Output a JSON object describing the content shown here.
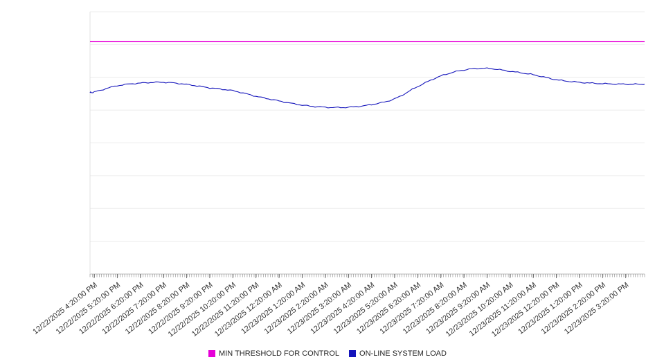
{
  "chart_data": {
    "type": "line",
    "title": "",
    "xlabel": "",
    "ylabel": "",
    "ylim": [
      0,
      100
    ],
    "grid": "horizontal",
    "legend_position": "bottom",
    "x_labels": [
      "12/22/2025 4:20:00 PM",
      "12/22/2025 5:20:00 PM",
      "12/22/2025 6:20:00 PM",
      "12/22/2025 7:20:00 PM",
      "12/22/2025 8:20:00 PM",
      "12/22/2025 9:20:00 PM",
      "12/22/2025 10:20:00 PM",
      "12/22/2025 11:20:00 PM",
      "12/23/2025 12:20:00 AM",
      "12/23/2025 1:20:00 AM",
      "12/23/2025 2:20:00 AM",
      "12/23/2025 3:20:00 AM",
      "12/23/2025 4:20:00 AM",
      "12/23/2025 5:20:00 AM",
      "12/23/2025 6:20:00 AM",
      "12/23/2025 7:20:00 AM",
      "12/23/2025 8:20:00 AM",
      "12/23/2025 9:20:00 AM",
      "12/23/2025 10:20:00 AM",
      "12/23/2025 11:20:00 AM",
      "12/23/2025 12:20:00 PM",
      "12/23/2025 1:20:00 PM",
      "12/23/2025 2:20:00 PM",
      "12/23/2025 3:20:00 PM"
    ],
    "series": [
      {
        "name": "MIN THRESHOLD FOR CONTROL",
        "color": "#e600d8",
        "constant": 88.7
      },
      {
        "name": "ON-LINE SYSTEM LOAD",
        "color": "#1414bb",
        "values": [
          69.4,
          71.8,
          72.8,
          73.1,
          72.3,
          71.0,
          69.9,
          67.8,
          66.0,
          64.4,
          63.6,
          63.6,
          64.6,
          66.8,
          71.5,
          75.5,
          77.8,
          78.4,
          77.3,
          76.0,
          74.1,
          73.1,
          72.6,
          72.4
        ]
      }
    ]
  }
}
